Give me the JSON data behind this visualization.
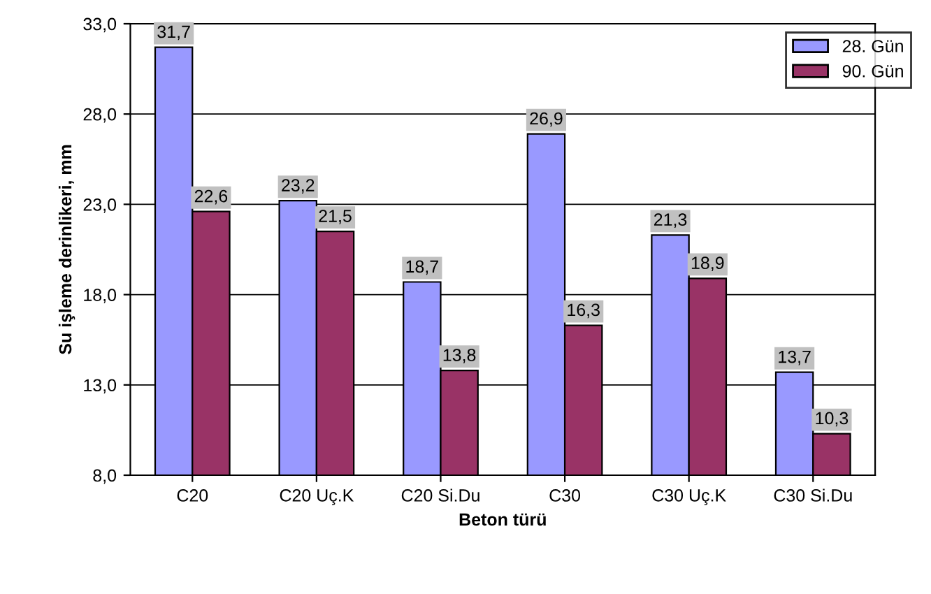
{
  "chart_data": {
    "type": "bar",
    "xlabel": "Beton türü",
    "ylabel": "Su işleme derinlikeri, mm",
    "categories": [
      "C20",
      "C20 Uç.K",
      "C20 Si.Du",
      "C30",
      "C30 Uç.K",
      "C30 Si.Du"
    ],
    "series": [
      {
        "name": "28. Gün",
        "color": "#9999ff",
        "values": [
          31.7,
          23.2,
          18.7,
          26.9,
          21.3,
          13.7
        ],
        "value_labels": [
          "31,7",
          "23,2",
          "18,7",
          "26,9",
          "21,3",
          "13,7"
        ]
      },
      {
        "name": "90. Gün",
        "color": "#993366",
        "values": [
          22.6,
          21.5,
          13.8,
          16.3,
          18.9,
          10.3
        ],
        "value_labels": [
          "22,6",
          "21,5",
          "13,8",
          "16,3",
          "18,9",
          "10,3"
        ]
      }
    ],
    "ylim": [
      8,
      33
    ],
    "yticks": [
      {
        "value": 8,
        "label": "8,0"
      },
      {
        "value": 13,
        "label": "13,0"
      },
      {
        "value": 18,
        "label": "18,0"
      },
      {
        "value": 23,
        "label": "23,0"
      },
      {
        "value": 28,
        "label": "28,0"
      },
      {
        "value": 33,
        "label": "33,0"
      }
    ],
    "grid": "y",
    "legend": "top right"
  }
}
